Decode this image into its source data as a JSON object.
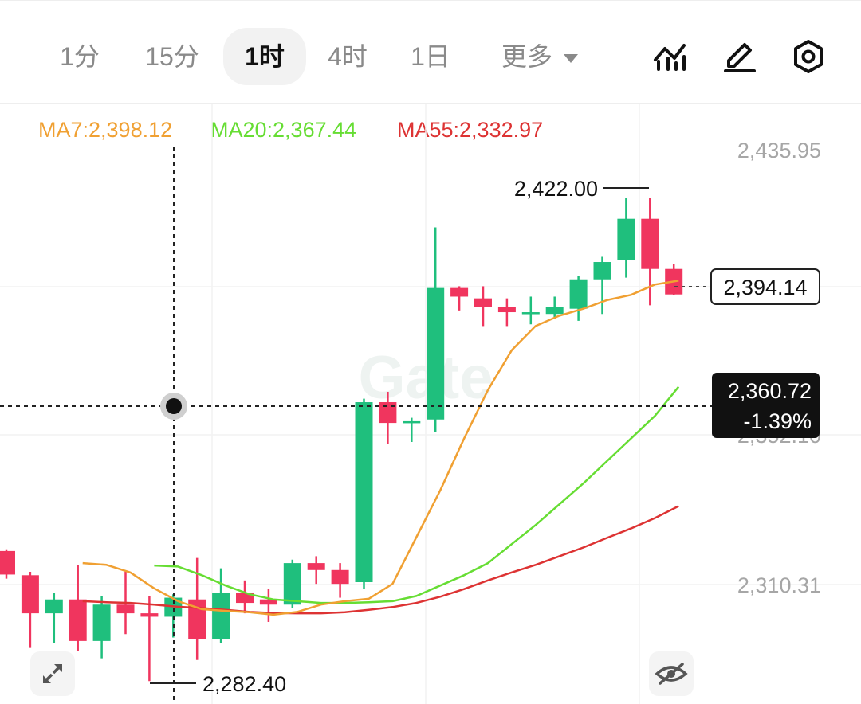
{
  "toolbar": {
    "tabs": [
      {
        "label": "1分",
        "active": false
      },
      {
        "label": "15分",
        "active": false
      },
      {
        "label": "1时",
        "active": true
      },
      {
        "label": "4时",
        "active": false
      },
      {
        "label": "1日",
        "active": false
      },
      {
        "label": "更多",
        "active": false
      }
    ],
    "icons": [
      "indicators-icon",
      "draw-icon",
      "settings-icon"
    ]
  },
  "legend": {
    "ma7": "MA7:2,398.12",
    "ma20": "MA20:2,367.44",
    "ma55": "MA55:2,332.97"
  },
  "colors": {
    "up": "#1fbf7d",
    "down": "#f0355e",
    "ma7": "#f0a032",
    "ma20": "#66dd33",
    "ma55": "#dd3333",
    "axis_text": "#a6a6a6"
  },
  "labels": {
    "high": "2,422.00",
    "low": "2,282.40",
    "last_price": "2,394.14",
    "crosshair_price": "2,360.72",
    "crosshair_change": "-1.39%",
    "hidden_axis_label": "2,352.10"
  },
  "buttons": {
    "expand_icon": "expand-icon",
    "hide_icon": "eye-off-icon"
  },
  "chart_data": {
    "type": "candlestick",
    "title": "",
    "interval": "1时",
    "y_axis": {
      "ticks": [
        "2,435.95",
        "2,310.31"
      ],
      "range": [
        2280,
        2445
      ]
    },
    "grid": true,
    "candles": [
      {
        "o": 2320.0,
        "h": 2320.5,
        "l": 2312.0,
        "c": 2313.2
      },
      {
        "o": 2313.0,
        "h": 2314.0,
        "l": 2292.0,
        "c": 2302.0
      },
      {
        "o": 2302.0,
        "h": 2308.0,
        "l": 2293.5,
        "c": 2306.0
      },
      {
        "o": 2306.0,
        "h": 2316.0,
        "l": 2291.0,
        "c": 2294.0
      },
      {
        "o": 2294.0,
        "h": 2307.0,
        "l": 2289.0,
        "c": 2304.5
      },
      {
        "o": 2304.5,
        "h": 2314.0,
        "l": 2296.0,
        "c": 2302.0
      },
      {
        "o": 2302.0,
        "h": 2307.0,
        "l": 2282.4,
        "c": 2301.0
      },
      {
        "o": 2301.0,
        "h": 2307.5,
        "l": 2295.0,
        "c": 2306.5
      },
      {
        "o": 2306.0,
        "h": 2318.0,
        "l": 2288.5,
        "c": 2294.5
      },
      {
        "o": 2294.5,
        "h": 2315.0,
        "l": 2293.5,
        "c": 2308.0
      },
      {
        "o": 2308.0,
        "h": 2311.5,
        "l": 2302.0,
        "c": 2305.0
      },
      {
        "o": 2306.0,
        "h": 2309.0,
        "l": 2299.5,
        "c": 2304.5
      },
      {
        "o": 2304.5,
        "h": 2317.5,
        "l": 2303.5,
        "c": 2316.5
      },
      {
        "o": 2316.5,
        "h": 2318.5,
        "l": 2310.5,
        "c": 2314.5
      },
      {
        "o": 2314.5,
        "h": 2316.5,
        "l": 2306.5,
        "c": 2310.5
      },
      {
        "o": 2311.0,
        "h": 2364.0,
        "l": 2309.0,
        "c": 2363.0
      },
      {
        "o": 2363.0,
        "h": 2366.0,
        "l": 2351.0,
        "c": 2357.0
      },
      {
        "o": 2357.0,
        "h": 2358.5,
        "l": 2351.5,
        "c": 2357.5
      },
      {
        "o": 2358.0,
        "h": 2413.5,
        "l": 2354.5,
        "c": 2396.0
      },
      {
        "o": 2396.0,
        "h": 2396.5,
        "l": 2389.5,
        "c": 2393.5
      },
      {
        "o": 2393.0,
        "h": 2396.5,
        "l": 2385.0,
        "c": 2390.5
      },
      {
        "o": 2390.5,
        "h": 2393.0,
        "l": 2385.0,
        "c": 2389.0
      },
      {
        "o": 2388.5,
        "h": 2393.5,
        "l": 2385.5,
        "c": 2389.0
      },
      {
        "o": 2388.5,
        "h": 2393.5,
        "l": 2387.0,
        "c": 2390.5
      },
      {
        "o": 2390.0,
        "h": 2399.5,
        "l": 2386.5,
        "c": 2398.5
      },
      {
        "o": 2398.5,
        "h": 2405.0,
        "l": 2388.5,
        "c": 2403.5
      },
      {
        "o": 2404.0,
        "h": 2422.0,
        "l": 2399.0,
        "c": 2416.0
      },
      {
        "o": 2416.0,
        "h": 2422.0,
        "l": 2391.0,
        "c": 2401.5
      },
      {
        "o": 2401.5,
        "h": 2403.0,
        "l": 2394.0,
        "c": 2394.14
      }
    ],
    "ma7": [
      2316.5,
      2316.0,
      2313.8,
      2309.2,
      2305.5,
      2303.2,
      2302.7,
      2302.3,
      2301.6,
      2302.4,
      2304.5,
      2305.5,
      2306.2,
      2310.5,
      2324.0,
      2337.5,
      2352.5,
      2366.5,
      2378.0,
      2385.0,
      2388.0,
      2390.0,
      2392.5,
      2394.0,
      2397.0,
      2398.12
    ],
    "ma20": [
      2315.8,
      2315.5,
      2313.0,
      2310.0,
      2307.5,
      2306.0,
      2305.5,
      2305.0,
      2305.0,
      2305.2,
      2305.5,
      2307.0,
      2310.0,
      2313.0,
      2316.5,
      2322.0,
      2327.5,
      2333.5,
      2339.5,
      2346.0,
      2352.5,
      2359.0,
      2367.44
    ],
    "ma55": [
      2305.5,
      2305.2,
      2305.0,
      2304.5,
      2303.9,
      2303.5,
      2303.0,
      2302.4,
      2302.1,
      2302.0,
      2302.0,
      2302.3,
      2303.0,
      2303.8,
      2305.0,
      2306.8,
      2309.0,
      2311.5,
      2313.8,
      2316.0,
      2318.5,
      2321.0,
      2323.8,
      2326.5,
      2329.5,
      2332.97
    ]
  }
}
